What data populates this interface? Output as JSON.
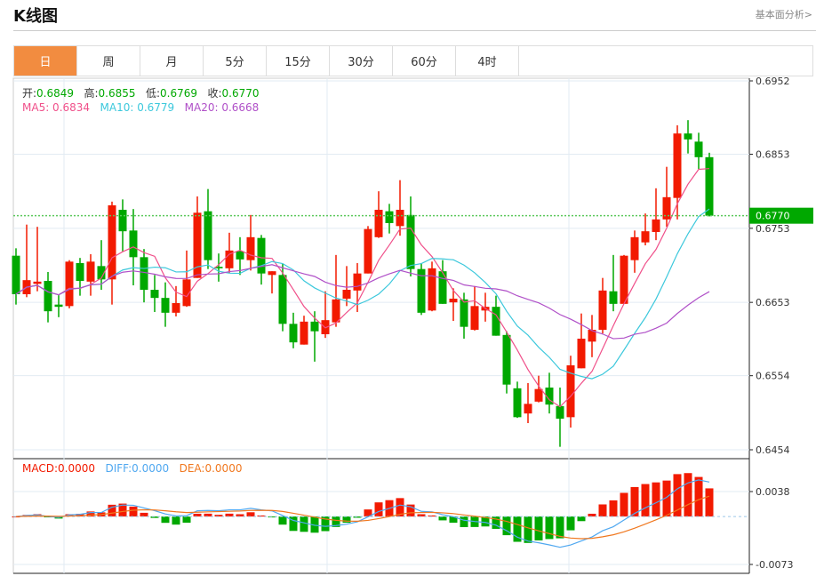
{
  "header": {
    "title": "K线图",
    "link": "基本面分析>"
  },
  "tabs": [
    {
      "label": "日",
      "active": true
    },
    {
      "label": "周"
    },
    {
      "label": "月"
    },
    {
      "label": "5分"
    },
    {
      "label": "15分"
    },
    {
      "label": "30分"
    },
    {
      "label": "60分"
    },
    {
      "label": "4时"
    }
  ],
  "legend": {
    "open_label": "开:",
    "open": "0.6849",
    "high_label": "高:",
    "high": "0.6855",
    "low_label": "低:",
    "low": "0.6769",
    "close_label": "收:",
    "close": "0.6770",
    "ma5": "MA5: 0.6834",
    "ma10": "MA10: 0.6779",
    "ma20": "MA20: 0.6668"
  },
  "macd_legend": {
    "macd": "MACD:0.0000",
    "diff": "DIFF:0.0000",
    "dea": "DEA:0.0000"
  },
  "colors": {
    "up": "#f21a00",
    "down": "#00a800",
    "ma5": "#f0508a",
    "ma10": "#3cc8dc",
    "ma20": "#b050c8",
    "diff": "#50a8f0",
    "dea": "#f07820",
    "accent": "#f28c40"
  },
  "chart_data": {
    "type": "candlestick",
    "current_price": "0.6770",
    "y_ticks": [
      "0.6952",
      "0.6853",
      "0.6753",
      "0.6653",
      "0.6554",
      "0.6454"
    ],
    "ylim": [
      0.6454,
      0.6952
    ],
    "macd_ticks": [
      "0.0038",
      "-0.0073"
    ],
    "macd_ylim": [
      -0.0073,
      0.0038
    ],
    "ohlc": [
      [
        0.6716,
        0.6726,
        0.665,
        0.6664
      ],
      [
        0.6664,
        0.6758,
        0.666,
        0.6683
      ],
      [
        0.6678,
        0.6755,
        0.6668,
        0.6681
      ],
      [
        0.6682,
        0.6694,
        0.6626,
        0.6641
      ],
      [
        0.665,
        0.6664,
        0.6633,
        0.6647
      ],
      [
        0.6648,
        0.671,
        0.6645,
        0.6708
      ],
      [
        0.6706,
        0.6713,
        0.6662,
        0.6682
      ],
      [
        0.6681,
        0.6718,
        0.6662,
        0.6708
      ],
      [
        0.6702,
        0.6737,
        0.667,
        0.6684
      ],
      [
        0.6684,
        0.6789,
        0.665,
        0.6784
      ],
      [
        0.6778,
        0.6792,
        0.6722,
        0.6749
      ],
      [
        0.675,
        0.6779,
        0.6676,
        0.6714
      ],
      [
        0.6714,
        0.6725,
        0.6653,
        0.667
      ],
      [
        0.667,
        0.669,
        0.664,
        0.6659
      ],
      [
        0.6659,
        0.668,
        0.662,
        0.6639
      ],
      [
        0.6639,
        0.6675,
        0.6634,
        0.6652
      ],
      [
        0.6648,
        0.6723,
        0.6647,
        0.6684
      ],
      [
        0.6686,
        0.6796,
        0.6686,
        0.6774
      ],
      [
        0.6776,
        0.6806,
        0.6698,
        0.671
      ],
      [
        0.6701,
        0.6719,
        0.6681,
        0.6699
      ],
      [
        0.6699,
        0.6747,
        0.6693,
        0.6723
      ],
      [
        0.6722,
        0.6741,
        0.669,
        0.6711
      ],
      [
        0.671,
        0.6771,
        0.6696,
        0.6741
      ],
      [
        0.674,
        0.6744,
        0.6677,
        0.6692
      ],
      [
        0.669,
        0.6695,
        0.6665,
        0.6695
      ],
      [
        0.669,
        0.6705,
        0.6614,
        0.6624
      ],
      [
        0.6624,
        0.6639,
        0.6591,
        0.6599
      ],
      [
        0.6596,
        0.6635,
        0.6596,
        0.6627
      ],
      [
        0.6627,
        0.6641,
        0.6573,
        0.6614
      ],
      [
        0.661,
        0.6668,
        0.6605,
        0.6629
      ],
      [
        0.6626,
        0.6717,
        0.662,
        0.6657
      ],
      [
        0.6658,
        0.6702,
        0.6648,
        0.667
      ],
      [
        0.6669,
        0.6706,
        0.664,
        0.6692
      ],
      [
        0.6692,
        0.6756,
        0.6692,
        0.6752
      ],
      [
        0.6741,
        0.6803,
        0.674,
        0.6778
      ],
      [
        0.6776,
        0.6786,
        0.6746,
        0.676
      ],
      [
        0.6756,
        0.6818,
        0.6743,
        0.6778
      ],
      [
        0.6771,
        0.6796,
        0.6688,
        0.6698
      ],
      [
        0.6698,
        0.6706,
        0.6636,
        0.6639
      ],
      [
        0.6642,
        0.6708,
        0.6641,
        0.6699
      ],
      [
        0.6695,
        0.671,
        0.6651,
        0.6651
      ],
      [
        0.6653,
        0.6672,
        0.6628,
        0.6658
      ],
      [
        0.6657,
        0.6666,
        0.6604,
        0.662
      ],
      [
        0.6616,
        0.6675,
        0.6615,
        0.6648
      ],
      [
        0.6642,
        0.6666,
        0.6627,
        0.6647
      ],
      [
        0.6647,
        0.6662,
        0.6608,
        0.6608
      ],
      [
        0.6609,
        0.6614,
        0.653,
        0.6542
      ],
      [
        0.6537,
        0.6546,
        0.6497,
        0.6498
      ],
      [
        0.6503,
        0.6544,
        0.649,
        0.6516
      ],
      [
        0.6519,
        0.6554,
        0.6518,
        0.6536
      ],
      [
        0.6538,
        0.6558,
        0.6503,
        0.6515
      ],
      [
        0.6513,
        0.6538,
        0.6458,
        0.6496
      ],
      [
        0.6498,
        0.6581,
        0.6484,
        0.6568
      ],
      [
        0.6564,
        0.6638,
        0.6564,
        0.6604
      ],
      [
        0.66,
        0.6636,
        0.6579,
        0.6616
      ],
      [
        0.6616,
        0.6686,
        0.6611,
        0.6669
      ],
      [
        0.6668,
        0.6717,
        0.6641,
        0.6651
      ],
      [
        0.6651,
        0.6717,
        0.6651,
        0.6716
      ],
      [
        0.671,
        0.675,
        0.6693,
        0.6741
      ],
      [
        0.6734,
        0.6773,
        0.673,
        0.6749
      ],
      [
        0.6748,
        0.6807,
        0.6737,
        0.6765
      ],
      [
        0.6765,
        0.6836,
        0.6755,
        0.6795
      ],
      [
        0.6794,
        0.6892,
        0.6765,
        0.6881
      ],
      [
        0.6881,
        0.6899,
        0.6854,
        0.6873
      ],
      [
        0.687,
        0.6882,
        0.6833,
        0.6849
      ],
      [
        0.6849,
        0.6855,
        0.6769,
        0.677
      ]
    ]
  }
}
